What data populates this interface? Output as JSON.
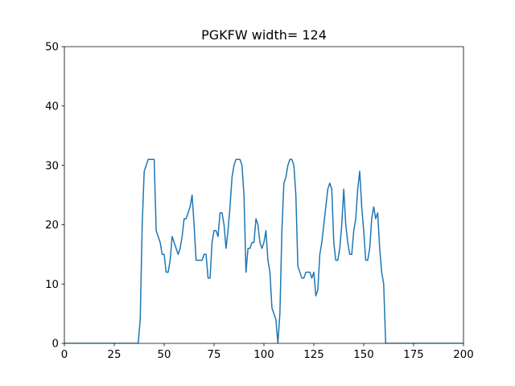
{
  "chart_data": {
    "type": "line",
    "title": "PGKFW width= 124",
    "xlabel": "",
    "ylabel": "",
    "xlim": [
      0,
      200
    ],
    "ylim": [
      0,
      50
    ],
    "xticks": [
      0,
      25,
      50,
      75,
      100,
      125,
      150,
      175,
      200
    ],
    "yticks": [
      0,
      10,
      20,
      30,
      40,
      50
    ],
    "grid": false,
    "line_color": "#1f77b4",
    "series": [
      {
        "x": [
          0,
          1,
          2,
          3,
          4,
          5,
          6,
          7,
          8,
          9,
          10,
          11,
          12,
          13,
          14,
          15,
          16,
          17,
          18,
          19,
          20,
          21,
          22,
          23,
          24,
          25,
          26,
          27,
          28,
          29,
          30,
          31,
          32,
          33,
          34,
          35,
          36,
          37,
          38,
          39,
          40,
          41,
          42,
          43,
          44,
          45,
          46,
          47,
          48,
          49,
          50,
          51,
          52,
          53,
          54,
          55,
          56,
          57,
          58,
          59,
          60,
          61,
          62,
          63,
          64,
          65,
          66,
          67,
          68,
          69,
          70,
          71,
          72,
          73,
          74,
          75,
          76,
          77,
          78,
          79,
          80,
          81,
          82,
          83,
          84,
          85,
          86,
          87,
          88,
          89,
          90,
          91,
          92,
          93,
          94,
          95,
          96,
          97,
          98,
          99,
          100,
          101,
          102,
          103,
          104,
          105,
          106,
          107,
          108,
          109,
          110,
          111,
          112,
          113,
          114,
          115,
          116,
          117,
          118,
          119,
          120,
          121,
          122,
          123,
          124,
          125,
          126,
          127,
          128,
          129,
          130,
          131,
          132,
          133,
          134,
          135,
          136,
          137,
          138,
          139,
          140,
          141,
          142,
          143,
          144,
          145,
          146,
          147,
          148,
          149,
          150,
          151,
          152,
          153,
          154,
          155,
          156,
          157,
          158,
          159,
          160,
          161,
          162,
          163,
          164,
          165,
          166,
          167,
          168,
          169,
          170,
          171,
          172,
          173,
          174,
          175,
          176,
          177,
          178,
          179,
          180,
          181,
          182,
          183,
          184,
          185,
          186,
          187,
          188,
          189,
          190,
          191,
          192,
          193,
          194,
          195,
          196,
          197,
          198,
          199,
          200
        ],
        "values": [
          0,
          0,
          0,
          0,
          0,
          0,
          0,
          0,
          0,
          0,
          0,
          0,
          0,
          0,
          0,
          0,
          0,
          0,
          0,
          0,
          0,
          0,
          0,
          0,
          0,
          0,
          0,
          0,
          0,
          0,
          0,
          0,
          0,
          0,
          0,
          0,
          0,
          0,
          4,
          20,
          29,
          30,
          31,
          31,
          31,
          31,
          19,
          18,
          17,
          15,
          15,
          12,
          12,
          14,
          18,
          17,
          16,
          15,
          16,
          18,
          21,
          21,
          22,
          23,
          25,
          20,
          14,
          14,
          14,
          14,
          15,
          15,
          11,
          11,
          17,
          19,
          19,
          18,
          22,
          22,
          20,
          16,
          19,
          23,
          28,
          30,
          31,
          31,
          31,
          30,
          25,
          12,
          16,
          16,
          17,
          17,
          21,
          20,
          17,
          16,
          17,
          19,
          14,
          12,
          6,
          5,
          4,
          0,
          5,
          19,
          27,
          28,
          30,
          31,
          31,
          30,
          25,
          13,
          12,
          11,
          11,
          12,
          12,
          12,
          11,
          12,
          8,
          9,
          15,
          17,
          20,
          23,
          26,
          27,
          26,
          17,
          14,
          14,
          16,
          20,
          26,
          20,
          17,
          15,
          15,
          19,
          21,
          26,
          29,
          23,
          19,
          14,
          14,
          16,
          21,
          23,
          21,
          22,
          16,
          12,
          10,
          0,
          0,
          0,
          0,
          0,
          0,
          0,
          0,
          0,
          0,
          0,
          0,
          0,
          0,
          0,
          0,
          0,
          0,
          0,
          0,
          0,
          0,
          0,
          0,
          0,
          0,
          0,
          0,
          0,
          0,
          0,
          0,
          0,
          0,
          0,
          0,
          0,
          0,
          0,
          0
        ]
      }
    ]
  }
}
